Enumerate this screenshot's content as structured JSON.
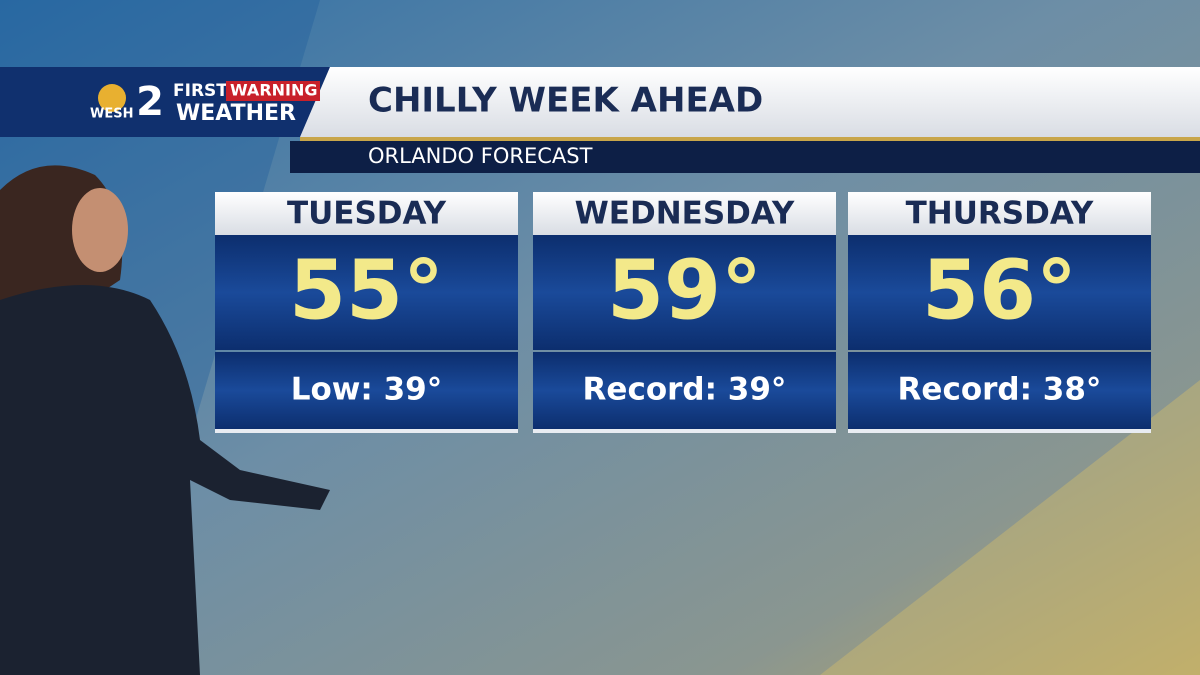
{
  "logo": {
    "station": "WESH",
    "channel": "2",
    "brand_top": "FIRST",
    "brand_tag": "WARNING",
    "brand_bottom": "WEATHER"
  },
  "header": {
    "title": "CHILLY WEEK AHEAD",
    "subtitle": "ORLANDO FORECAST"
  },
  "forecast": [
    {
      "day": "TUESDAY",
      "high": "55°",
      "note": "Low: 39°"
    },
    {
      "day": "WEDNESDAY",
      "high": "59°",
      "note": "Record: 39°"
    },
    {
      "day": "THURSDAY",
      "high": "56°",
      "note": "Record: 38°"
    }
  ]
}
